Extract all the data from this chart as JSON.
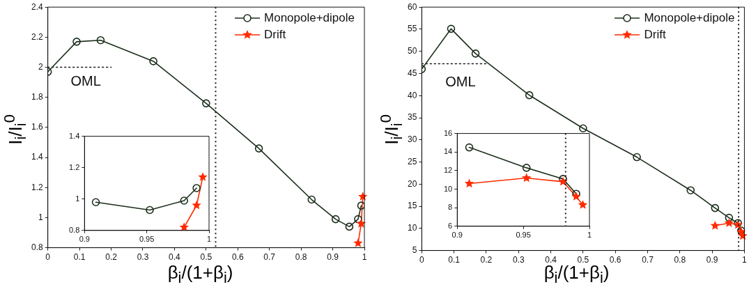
{
  "chart_data": [
    {
      "type": "line",
      "xlabel": "β$_{i}$/(1+β$_{i}$)",
      "ylabel": "I$_{i}$/I$_{i}$$^{0}$",
      "xlim": [
        0,
        1
      ],
      "xticks": [
        0,
        0.1,
        0.2,
        0.3,
        0.4,
        0.5,
        0.6,
        0.7,
        0.8,
        0.9,
        1
      ],
      "ylim": [
        0.8,
        2.4
      ],
      "yticks": [
        0.8,
        1,
        1.2,
        1.4,
        1.6,
        1.8,
        2,
        2.2,
        2.4
      ],
      "grid": false,
      "legend": "top right",
      "series": [
        {
          "name": "Monopole+dipole",
          "color": "#1c2e1c",
          "marker": "circle",
          "x": [
            0,
            0.0909,
            0.1667,
            0.3333,
            0.5,
            0.6667,
            0.8333,
            0.9091,
            0.9524,
            0.98,
            0.99
          ],
          "values": [
            1.97,
            2.17,
            2.18,
            2.04,
            1.76,
            1.46,
            1.12,
            0.99,
            0.94,
            0.99,
            1.08
          ]
        },
        {
          "name": "Drift",
          "color": "#ff2a00",
          "marker": "star",
          "x": [
            0.98,
            0.99,
            0.995
          ],
          "values": [
            0.83,
            0.96,
            1.14
          ]
        },
        {
          "color": "#1c1c1c",
          "marker": "none",
          "line_style": "dotted",
          "x": [
            0,
            0.2
          ],
          "values": [
            2,
            2
          ]
        }
      ],
      "ref_lines": [
        {
          "axis": "x",
          "value": 0.53,
          "line_style": "dotted",
          "color": "#1c1c1c"
        }
      ],
      "annotations": [
        "OML"
      ]
    },
    {
      "type": "line",
      "xlim": [
        0.9,
        1
      ],
      "xticks": [
        0.9,
        0.95,
        1
      ],
      "ylim": [
        0.8,
        1.4
      ],
      "yticks": [
        0.8,
        1,
        1.2,
        1.4
      ],
      "grid": false,
      "series": [
        {
          "color": "#1c2e1c",
          "marker": "circle",
          "x": [
            0.9091,
            0.9524,
            0.98,
            0.99
          ],
          "values": [
            0.98,
            0.93,
            0.99,
            1.07
          ]
        },
        {
          "color": "#ff2a00",
          "marker": "star",
          "x": [
            0.98,
            0.99,
            0.995
          ],
          "values": [
            0.82,
            0.96,
            1.14
          ]
        }
      ]
    },
    {
      "type": "line",
      "xlabel": "β$_{i}$/(1+β$_{i}$)",
      "ylabel": "I$_{i}$/I$_{i}$$^{0}$",
      "xlim": [
        0,
        1
      ],
      "xticks": [
        0,
        0.1,
        0.2,
        0.3,
        0.4,
        0.5,
        0.6,
        0.7,
        0.8,
        0.9,
        1
      ],
      "ylim": [
        5,
        60
      ],
      "yticks": [
        5,
        10,
        15,
        20,
        25,
        30,
        35,
        40,
        45,
        50,
        55,
        60
      ],
      "grid": false,
      "legend": "top right",
      "series": [
        {
          "name": "Monopole+dipole",
          "color": "#1c2e1c",
          "marker": "circle",
          "x": [
            0,
            0.0909,
            0.1667,
            0.3333,
            0.5,
            0.6667,
            0.8333,
            0.9091,
            0.9524,
            0.98,
            0.99
          ],
          "values": [
            46,
            55.1,
            49.5,
            40.1,
            32.6,
            26.1,
            18.6,
            14.6,
            12.4,
            11.2,
            9.5
          ]
        },
        {
          "name": "Drift",
          "color": "#ff2a00",
          "marker": "star",
          "x": [
            0.9091,
            0.9524,
            0.98,
            0.99,
            0.995
          ],
          "values": [
            10.6,
            11.2,
            10.8,
            9.2,
            8.3
          ]
        },
        {
          "color": "#1c1c1c",
          "marker": "none",
          "line_style": "dotted",
          "x": [
            0,
            0.2
          ],
          "values": [
            47.2,
            47.2
          ]
        }
      ],
      "ref_lines": [
        {
          "axis": "x",
          "value": 0.982,
          "line_style": "dotted",
          "color": "#1c1c1c"
        }
      ],
      "annotations": [
        "OML"
      ]
    },
    {
      "type": "line",
      "xlim": [
        0.9,
        1
      ],
      "xticks": [
        0.9,
        0.95,
        1
      ],
      "ylim": [
        6,
        16
      ],
      "yticks": [
        6,
        8,
        10,
        12,
        14,
        16
      ],
      "grid": false,
      "series": [
        {
          "color": "#1c2e1c",
          "marker": "circle",
          "x": [
            0.9091,
            0.9524,
            0.98,
            0.99
          ],
          "values": [
            14.5,
            12.3,
            11.1,
            9.5
          ]
        },
        {
          "color": "#ff2a00",
          "marker": "star",
          "x": [
            0.9091,
            0.9524,
            0.98,
            0.99,
            0.995
          ],
          "values": [
            10.6,
            11.2,
            10.8,
            9.2,
            8.3
          ]
        }
      ],
      "ref_lines": [
        {
          "axis": "x",
          "value": 0.982,
          "line_style": "dotted",
          "color": "#1c1c1c"
        }
      ]
    }
  ]
}
